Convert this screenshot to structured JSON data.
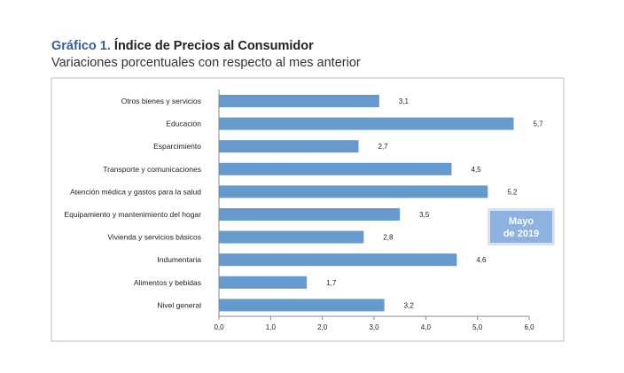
{
  "title_prefix": "Gráfico 1.",
  "title": "Índice de Precios al Consumidor",
  "subtitle": "Variaciones porcentuales con respecto al mes anterior",
  "annotation": [
    "Mayo",
    "de 2019"
  ],
  "colors": {
    "bar": "#6699cc",
    "annotation_bg": "#8db2df",
    "title_accent": "#2f5f9e"
  },
  "chart_data": {
    "type": "bar",
    "orientation": "horizontal",
    "categories": [
      "Otros bienes y servicios",
      "Educación",
      "Esparcimiento",
      "Transporte y comunicaciones",
      "Atención médica y gastos para la salud",
      "Equipamiento y  mantenimiento del hogar",
      "Vivienda y servicios básicos",
      "Indumentaria",
      "Alimentos y bebidas",
      "Nivel  general"
    ],
    "values": [
      3.1,
      5.7,
      2.7,
      4.5,
      5.2,
      3.5,
      2.8,
      4.6,
      1.7,
      3.2
    ],
    "value_labels": [
      "3,1",
      "5,7",
      "2,7",
      "4,5",
      "5,2",
      "3,5",
      "2,8",
      "4,6",
      "1,7",
      "3,2"
    ],
    "xlim": [
      0,
      6
    ],
    "xticks": [
      0,
      1,
      2,
      3,
      4,
      5,
      6
    ],
    "xtick_labels": [
      "0,0",
      "1,0",
      "2,0",
      "3,0",
      "4,0",
      "5,0",
      "6,0"
    ],
    "grid": false
  }
}
